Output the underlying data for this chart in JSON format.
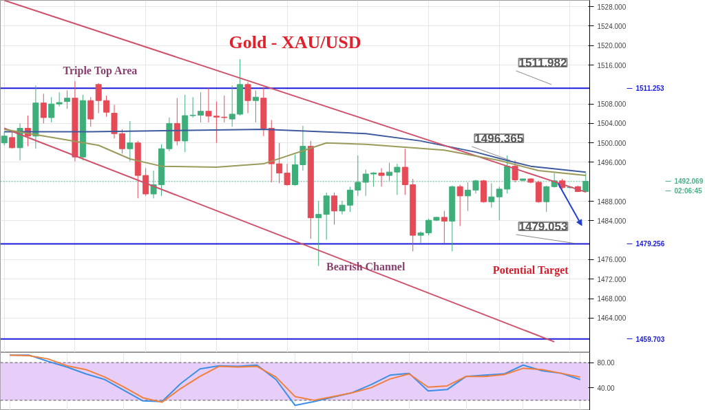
{
  "chart_data": [
    {
      "type": "candlestick",
      "title": "Gold - XAU/USD",
      "categories": [
        null,
        null,
        null,
        null,
        null,
        null,
        null,
        null,
        null,
        null,
        null,
        null,
        null,
        null,
        null,
        null,
        null,
        null,
        null,
        null,
        null,
        null,
        null,
        null,
        null,
        null,
        null,
        null,
        null,
        null,
        null,
        null,
        null,
        null,
        null,
        null,
        null,
        null,
        null,
        null,
        null,
        null,
        null,
        null,
        null,
        null,
        null,
        null,
        null,
        null,
        null,
        null,
        null,
        null,
        null,
        null,
        null,
        null,
        null,
        null,
        null,
        null,
        null,
        null,
        null,
        null,
        null,
        null,
        null,
        null,
        null,
        null,
        null,
        null,
        null
      ],
      "ohlc": [
        [
          1500.0,
          1502.3,
          1499.5,
          1501.4
        ],
        [
          1501.1,
          1502.3,
          1498.8,
          1499.0
        ],
        [
          1499.0,
          1504.0,
          1496.4,
          1503.0
        ],
        [
          1503.0,
          1505.6,
          1499.3,
          1501.4
        ],
        [
          1501.4,
          1511.8,
          1498.8,
          1508.2
        ],
        [
          1508.2,
          1510.1,
          1504.0,
          1505.2
        ],
        [
          1505.2,
          1509.4,
          1504.2,
          1508.0
        ],
        [
          1508.0,
          1510.4,
          1507.5,
          1508.3
        ],
        [
          1508.5,
          1510.8,
          1507.0,
          1509.2
        ],
        [
          1509.2,
          1512.7,
          1496.2,
          1497.1
        ],
        [
          1497.1,
          1509.9,
          1496.4,
          1508.7
        ],
        [
          1508.7,
          1509.4,
          1503.3,
          1504.9
        ],
        [
          1512.0,
          1512.3,
          1506.1,
          1508.7
        ],
        [
          1508.7,
          1509.7,
          1505.4,
          1506.3
        ],
        [
          1506.1,
          1507.8,
          1500.9,
          1501.9
        ],
        [
          1501.9,
          1502.8,
          1497.8,
          1498.8
        ],
        [
          1498.8,
          1504.5,
          1496.2,
          1500.0
        ],
        [
          1500.0,
          1500.4,
          1488.6,
          1493.3
        ],
        [
          1493.3,
          1494.8,
          1489.1,
          1489.5
        ],
        [
          1489.5,
          1494.3,
          1488.6,
          1491.4
        ],
        [
          1491.4,
          1499.7,
          1489.1,
          1498.8
        ],
        [
          1498.8,
          1505.2,
          1498.3,
          1504.0
        ],
        [
          1504.0,
          1509.2,
          1499.5,
          1500.4
        ],
        [
          1500.4,
          1509.9,
          1498.1,
          1505.6
        ],
        [
          1505.6,
          1509.4,
          1505.2,
          1505.7
        ],
        [
          1505.7,
          1510.4,
          1504.2,
          1506.5
        ],
        [
          1506.5,
          1511.3,
          1504.2,
          1505.5
        ],
        [
          1505.5,
          1508.5,
          1500.0,
          1505.3
        ],
        [
          1505.3,
          1509.7,
          1504.2,
          1505.2
        ],
        [
          1504.9,
          1511.8,
          1503.3,
          1505.9
        ],
        [
          1505.9,
          1517.2,
          1505.6,
          1512.0
        ],
        [
          1512.0,
          1512.5,
          1506.1,
          1508.7
        ],
        [
          1508.7,
          1510.8,
          1504.2,
          1509.4
        ],
        [
          1509.2,
          1511.5,
          1501.4,
          1503.0
        ],
        [
          1503.0,
          1504.7,
          1491.9,
          1495.7
        ],
        [
          1495.7,
          1500.0,
          1491.7,
          1493.8
        ],
        [
          1493.8,
          1495.7,
          1491.2,
          1491.4
        ],
        [
          1491.4,
          1497.6,
          1491.2,
          1495.5
        ],
        [
          1495.5,
          1503.5,
          1494.3,
          1499.3
        ],
        [
          1499.3,
          1500.4,
          1480.3,
          1484.6
        ],
        [
          1484.6,
          1488.1,
          1474.7,
          1485.3
        ],
        [
          1485.3,
          1489.8,
          1480.1,
          1489.1
        ],
        [
          1489.1,
          1489.8,
          1483.2,
          1486.0
        ],
        [
          1486.0,
          1488.1,
          1485.3,
          1487.2
        ],
        [
          1487.2,
          1491.0,
          1485.8,
          1490.3
        ],
        [
          1490.3,
          1497.4,
          1489.1,
          1491.9
        ],
        [
          1491.9,
          1494.5,
          1489.1,
          1493.6
        ],
        [
          1493.6,
          1494.0,
          1491.0,
          1493.8
        ],
        [
          1493.8,
          1494.8,
          1491.0,
          1493.3
        ],
        [
          1493.3,
          1495.9,
          1492.2,
          1494.0
        ],
        [
          1494.0,
          1495.7,
          1489.3,
          1495.0
        ],
        [
          1495.0,
          1498.8,
          1489.3,
          1491.4
        ],
        [
          1491.4,
          1492.6,
          1477.7,
          1481.0
        ],
        [
          1481.0,
          1481.8,
          1479.4,
          1481.5
        ],
        [
          1481.5,
          1484.4,
          1481.0,
          1484.1
        ],
        [
          1484.1,
          1484.8,
          1483.9,
          1484.7
        ],
        [
          1484.7,
          1486.0,
          1479.4,
          1483.9
        ],
        [
          1483.9,
          1491.2,
          1477.7,
          1491.0
        ],
        [
          1491.0,
          1491.4,
          1482.9,
          1489.1
        ],
        [
          1489.1,
          1491.9,
          1486.0,
          1490.3
        ],
        [
          1490.3,
          1492.4,
          1489.6,
          1492.2
        ],
        [
          1492.2,
          1492.4,
          1487.7,
          1487.9
        ],
        [
          1487.9,
          1491.7,
          1486.7,
          1488.9
        ],
        [
          1488.9,
          1491.0,
          1484.1,
          1490.5
        ],
        [
          1490.5,
          1497.4,
          1489.6,
          1495.2
        ],
        [
          1495.2,
          1496.4,
          1491.9,
          1492.4
        ],
        [
          1492.3,
          1492.6,
          1492.1,
          1492.6
        ],
        [
          1492.6,
          1492.7,
          1491.7,
          1491.9
        ],
        [
          1491.9,
          1492.2,
          1487.7,
          1487.9
        ],
        [
          1487.9,
          1491.2,
          1485.8,
          1491.0
        ],
        [
          1491.0,
          1493.8,
          1490.8,
          1492.2
        ],
        [
          1492.2,
          1492.6,
          1490.5,
          1490.8
        ],
        [
          1490.8,
          1491.0,
          1490.6,
          1490.9
        ],
        [
          1491.0,
          1491.2,
          1489.9,
          1490.0
        ],
        [
          1490.0,
          1493.8,
          1489.8,
          1492.1
        ]
      ],
      "series": [
        {
          "type": "line",
          "color": "#3d5a9e",
          "values": [
            1502.3,
            null,
            null,
            null,
            null,
            null,
            null,
            null,
            null,
            null,
            null,
            1502.3,
            null,
            null,
            null,
            null,
            null,
            null,
            null,
            null,
            null,
            null,
            null,
            null,
            null,
            null,
            null,
            null,
            null,
            null,
            null,
            null,
            null,
            1502.8,
            null,
            null,
            null,
            null,
            null,
            null,
            null,
            null,
            null,
            null,
            null,
            null,
            1501.9,
            null,
            null,
            null,
            null,
            null,
            null,
            1500.4,
            null,
            null,
            null,
            null,
            null,
            null,
            1498.1,
            null,
            null,
            null,
            1496.4,
            null,
            null,
            1495.2,
            null,
            null,
            null,
            null,
            null,
            null,
            1494.0
          ]
        },
        {
          "type": "line",
          "color": "#d0506a",
          "values": [
            1529.3,
            null,
            null,
            null,
            null,
            null,
            null,
            null,
            null,
            null,
            null,
            null,
            null,
            null,
            null,
            null,
            null,
            null,
            null,
            null,
            null,
            null,
            null,
            null,
            null,
            null,
            null,
            null,
            null,
            null,
            null,
            null,
            null,
            null,
            null,
            null,
            null,
            null,
            null,
            null,
            null,
            null,
            null,
            null,
            null,
            null,
            null,
            null,
            null,
            null,
            null,
            null,
            null,
            null,
            null,
            null,
            null,
            null,
            null,
            null,
            null,
            null,
            null,
            null,
            null,
            null,
            null,
            null,
            null,
            null,
            null,
            null,
            null,
            null,
            1489.9
          ]
        },
        {
          "type": "line",
          "color": "#d0506a",
          "values": [
            1503.0,
            null,
            null,
            null,
            null,
            null,
            null,
            null,
            null,
            null,
            null,
            null,
            null,
            null,
            null,
            null,
            null,
            null,
            null,
            null,
            null,
            null,
            null,
            null,
            null,
            null,
            null,
            null,
            null,
            null,
            null,
            null,
            null,
            null,
            null,
            null,
            null,
            null,
            null,
            null,
            null,
            null,
            null,
            null,
            null,
            null,
            null,
            null,
            null,
            null,
            null,
            null,
            null,
            null,
            null,
            null,
            null,
            null,
            null,
            null,
            null,
            null,
            null,
            null,
            null,
            null,
            null,
            null,
            null,
            null,
            1459.1,
            null,
            null,
            null,
            null
          ]
        },
        {
          "type": "line",
          "color": "#9a9a5a",
          "values": [
            1502.8,
            null,
            null,
            null,
            null,
            null,
            null,
            null,
            null,
            null,
            null,
            null,
            1499.5,
            null,
            null,
            null,
            1496.7,
            null,
            null,
            null,
            1495.2,
            null,
            null,
            null,
            null,
            null,
            null,
            1495.0,
            null,
            null,
            null,
            null,
            null,
            1495.7,
            null,
            null,
            null,
            null,
            null,
            null,
            null,
            1500.0,
            null,
            null,
            null,
            null,
            1499.7,
            null,
            null,
            null,
            null,
            null,
            null,
            null,
            null,
            null,
            1498.5,
            null,
            null,
            null,
            null,
            null,
            null,
            1496.4,
            null,
            null,
            null,
            null,
            1494.3,
            null,
            null,
            null,
            null,
            null,
            1493.3
          ]
        }
      ],
      "ylim": [
        1456.9,
        1529.3
      ],
      "yticks": [
        {
          "value": 1464,
          "label": "1464.000"
        },
        {
          "value": 1468,
          "label": "1468.000"
        },
        {
          "value": 1472,
          "label": "1472.000"
        },
        {
          "value": 1476,
          "label": "1476.000"
        },
        {
          "value": 1484,
          "label": "1484.000"
        },
        {
          "value": 1488,
          "label": "1488.000"
        },
        {
          "value": 1496,
          "label": "1496.000"
        },
        {
          "value": 1500,
          "label": "1500.000"
        },
        {
          "value": 1504,
          "label": "1504.000"
        },
        {
          "value": 1508,
          "label": "1508.000"
        },
        {
          "value": 1516,
          "label": "1516.000"
        },
        {
          "value": 1520,
          "label": "1520.000"
        },
        {
          "value": 1524,
          "label": "1524.000"
        },
        {
          "value": 1528,
          "label": "1528.000"
        }
      ],
      "grid": true,
      "ref_lines": [
        {
          "axis": "y",
          "value": 1511.253,
          "label": "1511.253",
          "color": "#1a1adb",
          "line_style": "solid"
        },
        {
          "axis": "y",
          "value": 1479.256,
          "label": "1479.256",
          "color": "#1a1adb",
          "line_style": "solid"
        },
        {
          "axis": "y",
          "value": 1459.703,
          "label": "1459.703",
          "color": "#1a1adb",
          "line_style": "solid"
        },
        {
          "axis": "y",
          "value": 1492.069,
          "label": "1492.069",
          "color": "#4caf88",
          "line_style": "dotted"
        }
      ],
      "annotations": [
        "Triple Top Area",
        "Bearish Channel",
        "Potential Target",
        "1511.982",
        "1496.365",
        "1479.053",
        "02:06:45"
      ]
    },
    {
      "type": "line",
      "categories": [
        null,
        null,
        null,
        null,
        null,
        null,
        null,
        null,
        null,
        null,
        null,
        null,
        null,
        null,
        null,
        null,
        null,
        null,
        null,
        null,
        null,
        null,
        null,
        null,
        null,
        null,
        null,
        null,
        null,
        null,
        null
      ],
      "series": [
        {
          "color": "#3a8ee6",
          "values": [
            92,
            92,
            82,
            73,
            62,
            53,
            36,
            19,
            18,
            47,
            70,
            75,
            74,
            76,
            53,
            12,
            18,
            25,
            32,
            45,
            60,
            63,
            35,
            37,
            58,
            60,
            62,
            76,
            67,
            63,
            53
          ]
        },
        {
          "color": "#f07f3c",
          "values": [
            92,
            91,
            86,
            75,
            69,
            57,
            41,
            24,
            17,
            39,
            58,
            74,
            73,
            74,
            57,
            26,
            20,
            26,
            32,
            40,
            54,
            62,
            41,
            43,
            58,
            58,
            61,
            71,
            69,
            63,
            57
          ]
        }
      ],
      "ylim": [
        4,
        96
      ],
      "yticks": [
        {
          "value": 80,
          "label": "80.00"
        },
        {
          "value": 40,
          "label": "40.00"
        }
      ],
      "grid": true,
      "ref_lines": [
        {
          "axis": "y",
          "value": 80,
          "color": "#555555",
          "line_style": "dashed"
        },
        {
          "axis": "y",
          "value": 20,
          "color": "#555555",
          "line_style": "dashed"
        }
      ],
      "bands": [
        {
          "axis": "y",
          "from": 20,
          "to": 80,
          "color": "#e3c9f7"
        }
      ]
    }
  ]
}
